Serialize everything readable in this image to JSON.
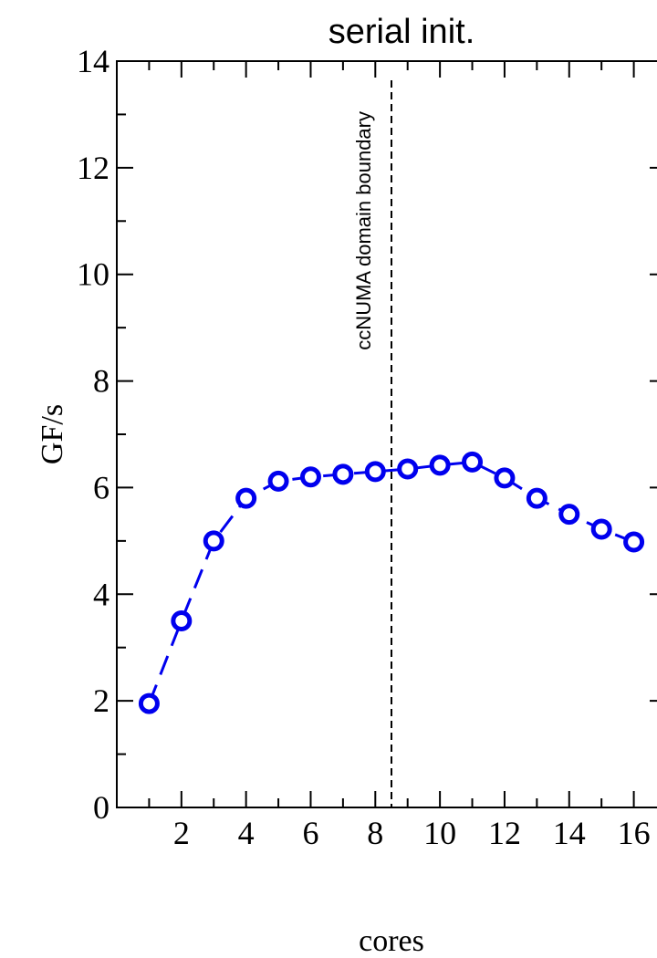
{
  "chart_data": {
    "type": "line",
    "title": "serial init.",
    "xlabel": "cores",
    "ylabel": "GF/s",
    "xlim": [
      0,
      17
    ],
    "ylim": [
      0,
      14
    ],
    "x_ticks": [
      2,
      4,
      6,
      8,
      10,
      12,
      14,
      16
    ],
    "y_ticks": [
      0,
      2,
      4,
      6,
      8,
      10,
      12,
      14
    ],
    "x_minor_ticks": [
      1,
      3,
      5,
      7,
      9,
      11,
      13,
      15
    ],
    "y_minor_ticks": [
      1,
      3,
      5,
      7,
      9,
      11,
      13
    ],
    "grid": false,
    "series": [
      {
        "color": "#0000ee",
        "line_style": "dashed",
        "marker": "open-circle",
        "x": [
          1,
          2,
          3,
          4,
          5,
          6,
          7,
          8,
          9,
          10,
          11,
          12,
          13,
          14,
          15,
          16
        ],
        "y": [
          1.95,
          3.5,
          5.0,
          5.8,
          6.12,
          6.2,
          6.25,
          6.3,
          6.35,
          6.42,
          6.48,
          6.18,
          5.8,
          5.5,
          5.22,
          4.98
        ]
      }
    ],
    "annotations": [
      {
        "text": "ccNUMA domain boundary",
        "x": 8.5,
        "type": "vertical-dashed-line",
        "color": "#000000"
      }
    ]
  }
}
